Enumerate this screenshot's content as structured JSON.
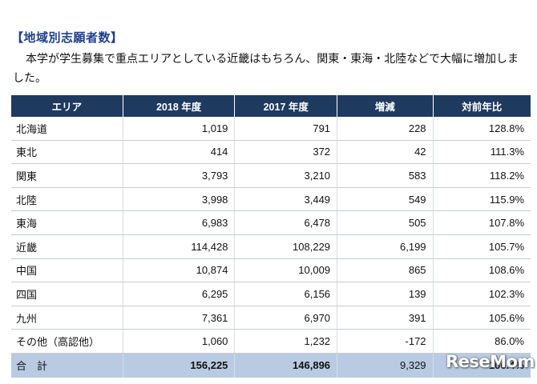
{
  "heading": "【地域別志願者数】",
  "paragraph": "本学が学生募集で重点エリアとしている近畿はもちろん、関東・東海・北陸などで大幅に増加しました。",
  "table": {
    "headers": [
      "エリア",
      "2018 年度",
      "2017 年度",
      "増減",
      "対前年比"
    ],
    "rows": [
      {
        "region": "北海道",
        "y2018": "1,019",
        "y2017": "791",
        "diff": "228",
        "ratio": "128.8%"
      },
      {
        "region": "東北",
        "y2018": "414",
        "y2017": "372",
        "diff": "42",
        "ratio": "111.3%"
      },
      {
        "region": "関東",
        "y2018": "3,793",
        "y2017": "3,210",
        "diff": "583",
        "ratio": "118.2%"
      },
      {
        "region": "北陸",
        "y2018": "3,998",
        "y2017": "3,449",
        "diff": "549",
        "ratio": "115.9%"
      },
      {
        "region": "東海",
        "y2018": "6,983",
        "y2017": "6,478",
        "diff": "505",
        "ratio": "107.8%"
      },
      {
        "region": "近畿",
        "y2018": "114,428",
        "y2017": "108,229",
        "diff": "6,199",
        "ratio": "105.7%"
      },
      {
        "region": "中国",
        "y2018": "10,874",
        "y2017": "10,009",
        "diff": "865",
        "ratio": "108.6%"
      },
      {
        "region": "四国",
        "y2018": "6,295",
        "y2017": "6,156",
        "diff": "139",
        "ratio": "102.3%"
      },
      {
        "region": "九州",
        "y2018": "7,361",
        "y2017": "6,970",
        "diff": "391",
        "ratio": "105.6%"
      },
      {
        "region": "その他（高認他）",
        "y2018": "1,060",
        "y2017": "1,232",
        "diff": "-172",
        "ratio": "86.0%"
      }
    ],
    "total": {
      "region": "合　計",
      "y2018": "156,225",
      "y2017": "146,896",
      "diff": "9,329",
      "ratio": "106.4%"
    }
  },
  "watermark": "ReseMom"
}
